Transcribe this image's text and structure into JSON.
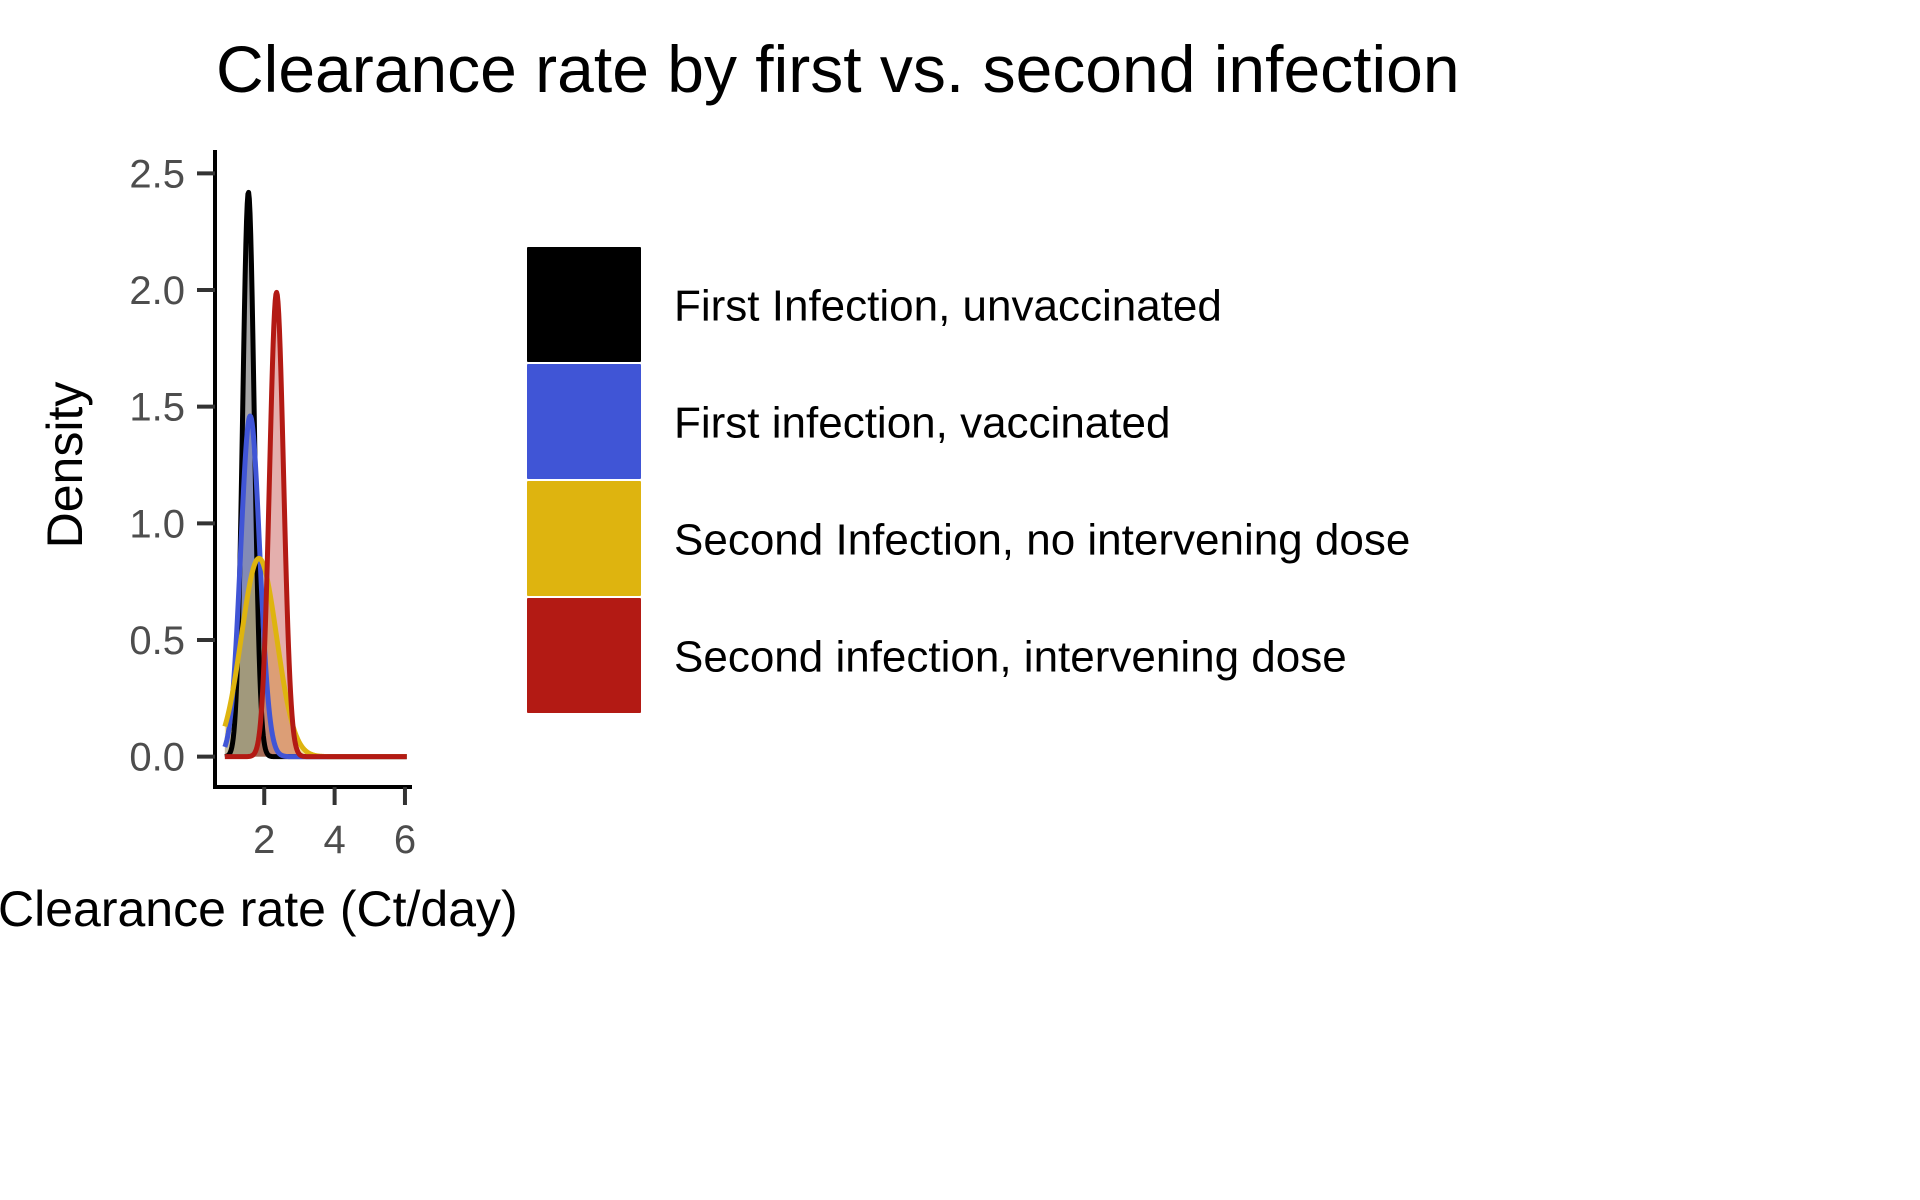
{
  "chart_data": {
    "type": "area",
    "title": "Clearance rate by first vs. second infection",
    "xlabel": "Clearance rate (Ct/day)",
    "ylabel": "Density",
    "xlim": [
      0.6,
      6.2
    ],
    "ylim": [
      -0.13,
      2.6
    ],
    "x_ticks": [
      {
        "value": 2,
        "label": "2"
      },
      {
        "value": 4,
        "label": "4"
      },
      {
        "value": 6,
        "label": "6"
      }
    ],
    "y_ticks": [
      {
        "value": 0.0,
        "label": "0.0"
      },
      {
        "value": 0.5,
        "label": "0.5"
      },
      {
        "value": 1.0,
        "label": "1.0"
      },
      {
        "value": 1.5,
        "label": "1.5"
      },
      {
        "value": 2.0,
        "label": "2.0"
      },
      {
        "value": 2.5,
        "label": "2.5"
      }
    ],
    "grid": false,
    "legend_position": "right",
    "series": [
      {
        "name": "First Infection, unvaccinated",
        "color": "#000000",
        "peak_x": 1.55,
        "peak_density": 2.42,
        "sd": 0.165
      },
      {
        "name": "First infection, vaccinated",
        "color": "#4055d6",
        "peak_x": 1.6,
        "peak_density": 1.46,
        "sd": 0.27
      },
      {
        "name": "Second Infection, no intervening dose",
        "color": "#deb40f",
        "peak_x": 1.85,
        "peak_density": 0.85,
        "sd": 0.5
      },
      {
        "name": "Second infection, intervening dose",
        "color": "#b31a14",
        "peak_x": 2.35,
        "peak_density": 1.99,
        "sd": 0.2
      }
    ]
  }
}
